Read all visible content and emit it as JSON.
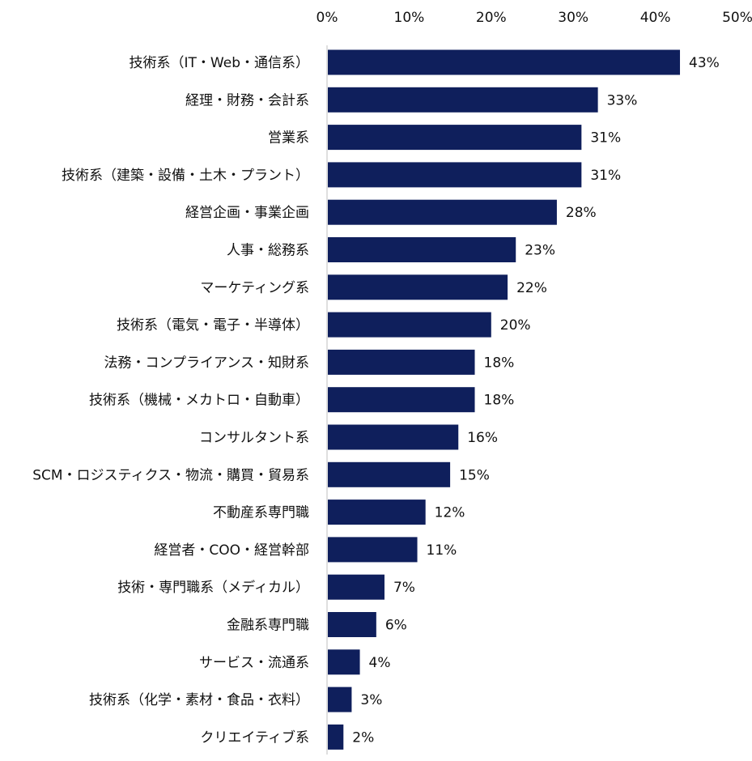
{
  "chart_data": {
    "type": "bar",
    "orientation": "horizontal",
    "categories": [
      "技術系（IT・Web・通信系）",
      "経理・財務・会計系",
      "営業系",
      "技術系（建築・設備・土木・プラント）",
      "経営企画・事業企画",
      "人事・総務系",
      "マーケティング系",
      "技術系（電気・電子・半導体）",
      "法務・コンプライアンス・知財系",
      "技術系（機械・メカトロ・自動車）",
      "コンサルタント系",
      "SCM・ロジスティクス・物流・購買・貿易系",
      "不動産系専門職",
      "経営者・COO・経営幹部",
      "技術・専門職系（メディカル）",
      "金融系専門職",
      "サービス・流通系",
      "技術系（化学・素材・食品・衣料）",
      "クリエイティブ系"
    ],
    "values": [
      43,
      33,
      31,
      31,
      28,
      23,
      22,
      20,
      18,
      18,
      16,
      15,
      12,
      11,
      7,
      6,
      4,
      3,
      2
    ],
    "data_labels": [
      "43%",
      "33%",
      "31%",
      "31%",
      "28%",
      "23%",
      "22%",
      "20%",
      "18%",
      "18%",
      "16%",
      "15%",
      "12%",
      "11%",
      "7%",
      "6%",
      "4%",
      "3%",
      "2%"
    ],
    "x_ticks": [
      "0%",
      "10%",
      "20%",
      "30%",
      "40%",
      "50%"
    ],
    "xlim": [
      0,
      50
    ],
    "x_axis_position": "top",
    "legend": "none",
    "grid": false,
    "bar_color": "#0f1f5c"
  }
}
